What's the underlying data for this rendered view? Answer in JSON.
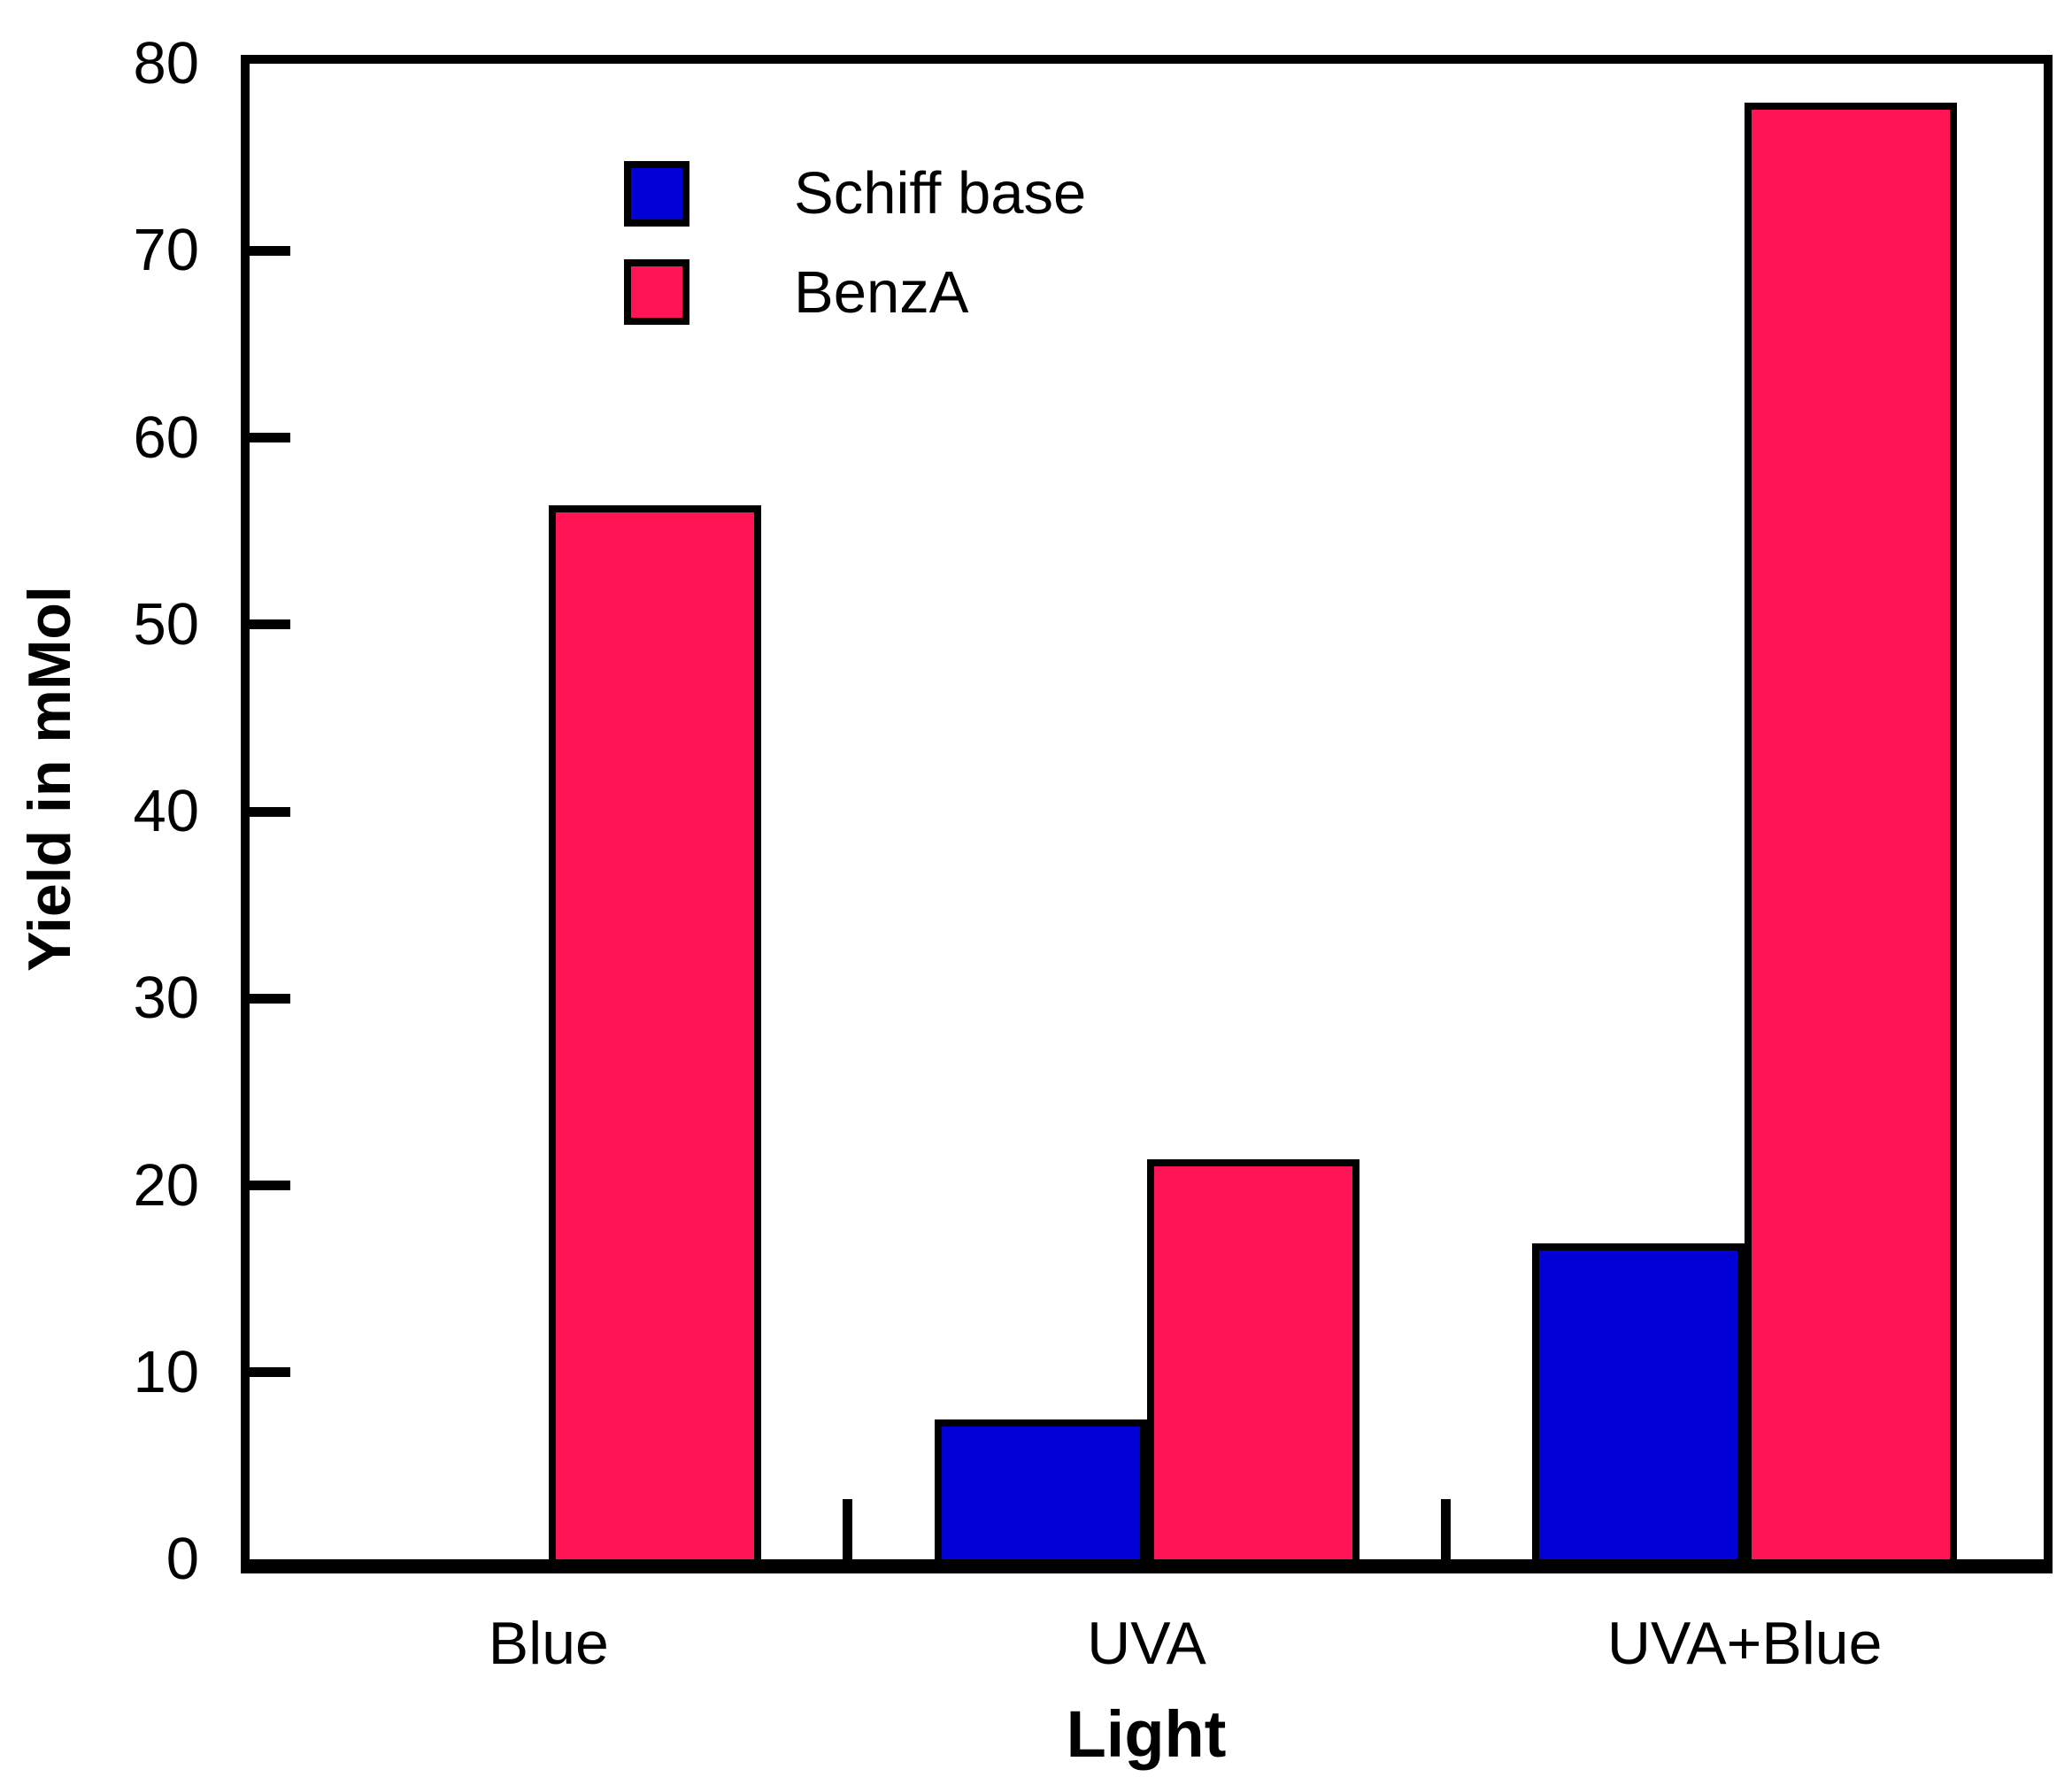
{
  "figure": {
    "background": "#ffffff",
    "text_color": "#000000"
  },
  "chart_data": {
    "type": "bar",
    "title": "",
    "categories": [
      "Blue",
      "UVA",
      "UVA+Blue"
    ],
    "series": [
      {
        "name": "Schiff base",
        "color": "#0101d6",
        "values": [
          0,
          7.5,
          16.9
        ]
      },
      {
        "name": "BenzA",
        "color": "#ff1456",
        "values": [
          56.4,
          21.4,
          77.9
        ]
      }
    ],
    "xlabel": "Light",
    "ylabel": "Yield in mMol",
    "ylim": [
      0,
      80
    ],
    "yticks": [
      0,
      10,
      20,
      30,
      40,
      50,
      60,
      70,
      80
    ],
    "grid": false,
    "legend_position": "upper-left-inside",
    "bar_border_color": "#000000",
    "frame_color": "#000000"
  }
}
